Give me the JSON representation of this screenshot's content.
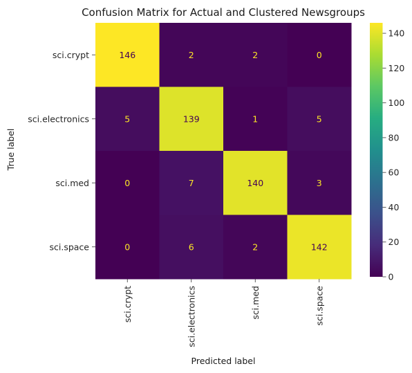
{
  "chart_data": {
    "type": "heatmap",
    "title": "Confusion Matrix for Actual and Clustered Newsgroups",
    "xlabel": "Predicted label",
    "ylabel": "True label",
    "row_labels": [
      "sci.crypt",
      "sci.electronics",
      "sci.med",
      "sci.space"
    ],
    "col_labels": [
      "sci.crypt",
      "sci.electronics",
      "sci.med",
      "sci.space"
    ],
    "matrix": [
      [
        146,
        2,
        2,
        0
      ],
      [
        5,
        139,
        1,
        5
      ],
      [
        0,
        7,
        140,
        3
      ],
      [
        0,
        6,
        2,
        142
      ]
    ],
    "colormap": "viridis",
    "vmin": 0,
    "vmax": 146,
    "colorbar_ticks": [
      0,
      20,
      40,
      60,
      80,
      100,
      120,
      140
    ],
    "grid": false
  }
}
